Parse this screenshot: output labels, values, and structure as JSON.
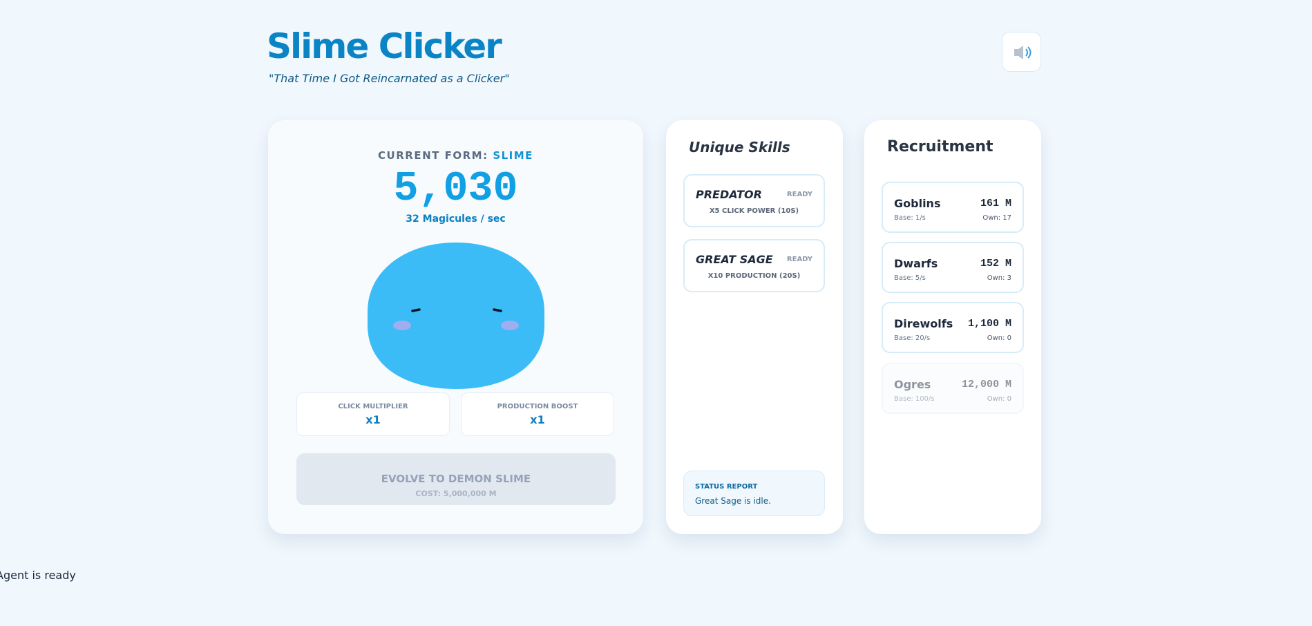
{
  "header": {
    "title": "Slime Clicker",
    "subtitle": "\"That Time I Got Reincarnated as a Clicker\""
  },
  "main": {
    "form_label": "CURRENT FORM:",
    "form": "SLIME",
    "count": "5,030",
    "rate": "32 Magicules / sec",
    "stats": [
      {
        "label": "CLICK MULTIPLIER",
        "value": "x1"
      },
      {
        "label": "PRODUCTION BOOST",
        "value": "x1"
      }
    ],
    "evolve": {
      "title": "EVOLVE TO DEMON SLIME",
      "cost": "COST: 5,000,000 M"
    }
  },
  "skills": {
    "title": "Unique Skills",
    "items": [
      {
        "name": "PREDATOR",
        "status": "READY",
        "desc": "X5 CLICK POWER (10S)"
      },
      {
        "name": "GREAT SAGE",
        "status": "READY",
        "desc": "X10 PRODUCTION (20S)"
      }
    ],
    "status_report": {
      "label": "STATUS REPORT",
      "text": "Great Sage is idle."
    }
  },
  "recruitment": {
    "title": "Recruitment",
    "items": [
      {
        "name": "Goblins",
        "cost": "161 M",
        "base": "Base: 1/s",
        "own": "Own: 17"
      },
      {
        "name": "Dwarfs",
        "cost": "152 M",
        "base": "Base: 5/s",
        "own": "Own: 3"
      },
      {
        "name": "Direwolfs",
        "cost": "1,100 M",
        "base": "Base: 20/s",
        "own": "Own: 0"
      },
      {
        "name": "Ogres",
        "cost": "12,000 M",
        "base": "Base: 100/s",
        "own": "Own: 0"
      }
    ]
  },
  "footer": {
    "agent": "Agent is ready"
  }
}
